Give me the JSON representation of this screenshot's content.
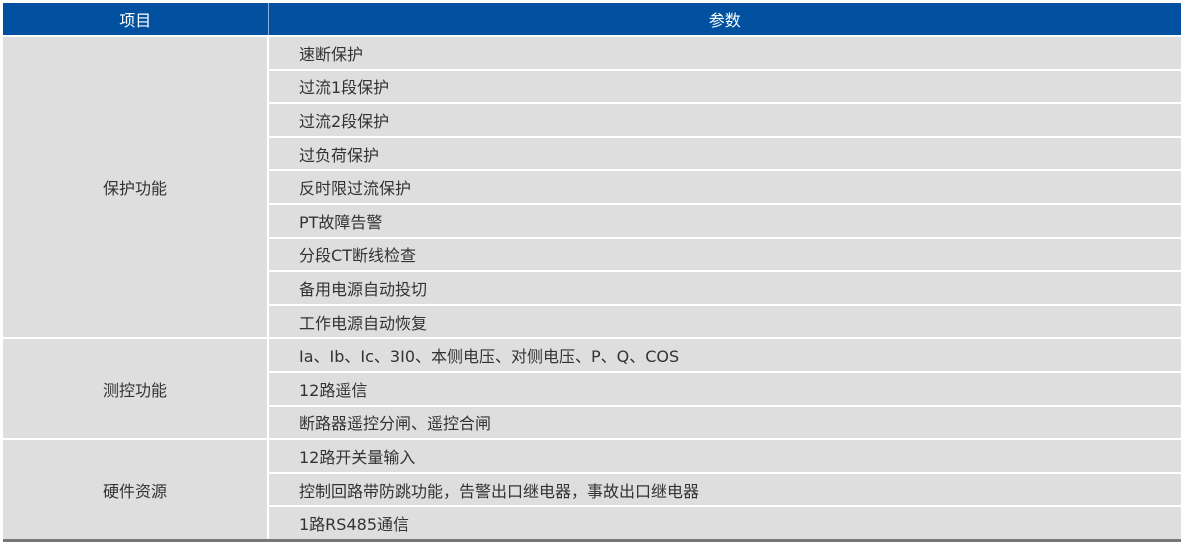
{
  "header": {
    "item": "项目",
    "params": "参数"
  },
  "groups": [
    {
      "name": "保护功能",
      "params": [
        "速断保护",
        "过流1段保护",
        "过流2段保护",
        "过负荷保护",
        "反时限过流保护",
        "PT故障告警",
        "分段CT断线检查",
        "备用电源自动投切",
        "工作电源自动恢复"
      ]
    },
    {
      "name": "测控功能",
      "params": [
        "Ia、Ib、Ic、3I0、本侧电压、对侧电压、P、Q、COS",
        "12路遥信",
        "断路器遥控分闸、遥控合闸"
      ]
    },
    {
      "name": "硬件资源",
      "params": [
        "12路开关量输入",
        "控制回路带防跳功能，告警出口继电器，事故出口继电器",
        "1路RS485通信"
      ]
    }
  ],
  "colors": {
    "header_bg": "#0151a0",
    "cell_bg": "#dedede"
  }
}
